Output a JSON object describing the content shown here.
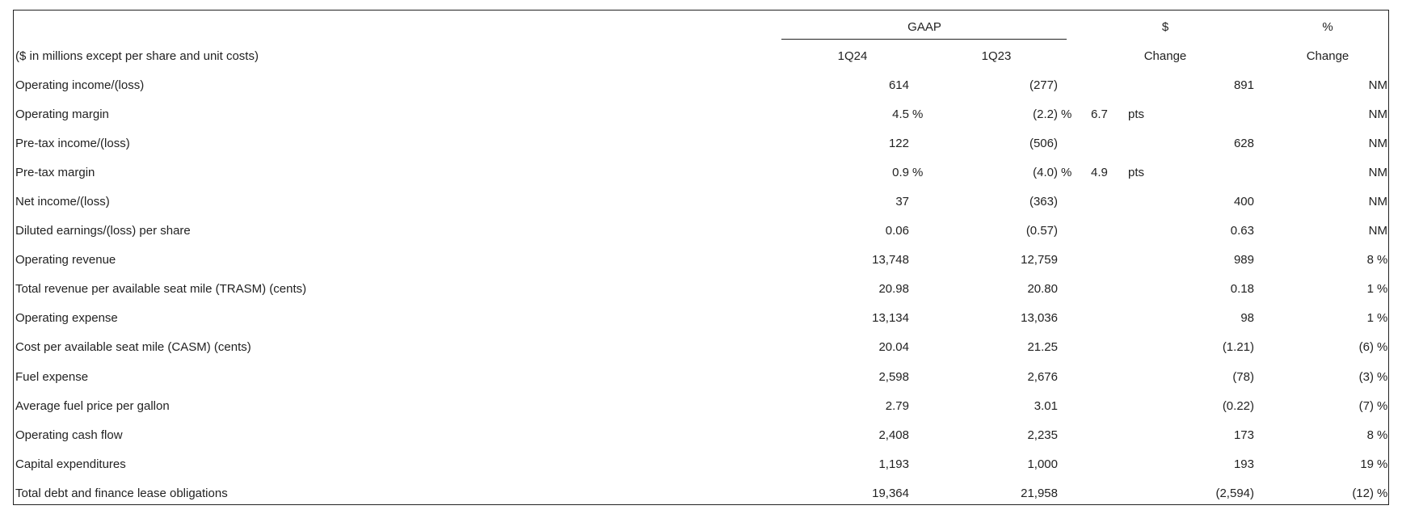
{
  "headers": {
    "gaap": "GAAP",
    "dollar_symbol": "$",
    "pct_symbol": "%",
    "label_col": "($ in millions except per share and unit costs)",
    "q1": "1Q24",
    "q2": "1Q23",
    "change": "Change",
    "change2": "Change"
  },
  "rows": [
    {
      "label": "Operating income/(loss)",
      "q1": "614",
      "q1s": "",
      "q2": "(277)",
      "q2s": "",
      "chg": "891",
      "pts": "",
      "pts_label": "",
      "pct": "NM",
      "pcts": ""
    },
    {
      "label": "Operating margin",
      "q1": "4.5",
      "q1s": "%",
      "q2": "(2.2)",
      "q2s": "%",
      "chg": "",
      "pts": "6.7",
      "pts_label": "pts",
      "pct": "NM",
      "pcts": ""
    },
    {
      "label": "Pre-tax income/(loss)",
      "q1": "122",
      "q1s": "",
      "q2": "(506)",
      "q2s": "",
      "chg": "628",
      "pts": "",
      "pts_label": "",
      "pct": "NM",
      "pcts": ""
    },
    {
      "label": "Pre-tax margin",
      "q1": "0.9",
      "q1s": "%",
      "q2": "(4.0)",
      "q2s": "%",
      "chg": "",
      "pts": "4.9",
      "pts_label": "pts",
      "pct": "NM",
      "pcts": ""
    },
    {
      "label": "Net income/(loss)",
      "q1": "37",
      "q1s": "",
      "q2": "(363)",
      "q2s": "",
      "chg": "400",
      "pts": "",
      "pts_label": "",
      "pct": "NM",
      "pcts": ""
    },
    {
      "label": "Diluted earnings/(loss) per share",
      "q1": "0.06",
      "q1s": "",
      "q2": "(0.57)",
      "q2s": "",
      "chg": "0.63",
      "pts": "",
      "pts_label": "",
      "pct": "NM",
      "pcts": ""
    },
    {
      "label": "Operating revenue",
      "q1": "13,748",
      "q1s": "",
      "q2": "12,759",
      "q2s": "",
      "chg": "989",
      "pts": "",
      "pts_label": "",
      "pct": "8",
      "pcts": "%"
    },
    {
      "label": "Total revenue per available seat mile (TRASM) (cents)",
      "q1": "20.98",
      "q1s": "",
      "q2": "20.80",
      "q2s": "",
      "chg": "0.18",
      "pts": "",
      "pts_label": "",
      "pct": "1",
      "pcts": "%"
    },
    {
      "label": "Operating expense",
      "q1": "13,134",
      "q1s": "",
      "q2": "13,036",
      "q2s": "",
      "chg": "98",
      "pts": "",
      "pts_label": "",
      "pct": "1",
      "pcts": "%"
    },
    {
      "label": "Cost per available seat mile (CASM) (cents)",
      "q1": "20.04",
      "q1s": "",
      "q2": "21.25",
      "q2s": "",
      "chg": "(1.21)",
      "pts": "",
      "pts_label": "",
      "pct": "(6)",
      "pcts": "%"
    },
    {
      "label": "Fuel expense",
      "q1": "2,598",
      "q1s": "",
      "q2": "2,676",
      "q2s": "",
      "chg": "(78)",
      "pts": "",
      "pts_label": "",
      "pct": "(3)",
      "pcts": "%"
    },
    {
      "label": "Average fuel price per gallon",
      "q1": "2.79",
      "q1s": "",
      "q2": "3.01",
      "q2s": "",
      "chg": "(0.22)",
      "pts": "",
      "pts_label": "",
      "pct": "(7)",
      "pcts": "%"
    },
    {
      "label": "Operating cash flow",
      "q1": "2,408",
      "q1s": "",
      "q2": "2,235",
      "q2s": "",
      "chg": "173",
      "pts": "",
      "pts_label": "",
      "pct": "8",
      "pcts": "%"
    },
    {
      "label": "Capital expenditures",
      "q1": "1,193",
      "q1s": "",
      "q2": "1,000",
      "q2s": "",
      "chg": "193",
      "pts": "",
      "pts_label": "",
      "pct": "19",
      "pcts": "%"
    },
    {
      "label": "Total debt and finance lease obligations",
      "q1": "19,364",
      "q1s": "",
      "q2": "21,958",
      "q2s": "",
      "chg": "(2,594)",
      "pts": "",
      "pts_label": "",
      "pct": "(12)",
      "pcts": "%"
    }
  ]
}
